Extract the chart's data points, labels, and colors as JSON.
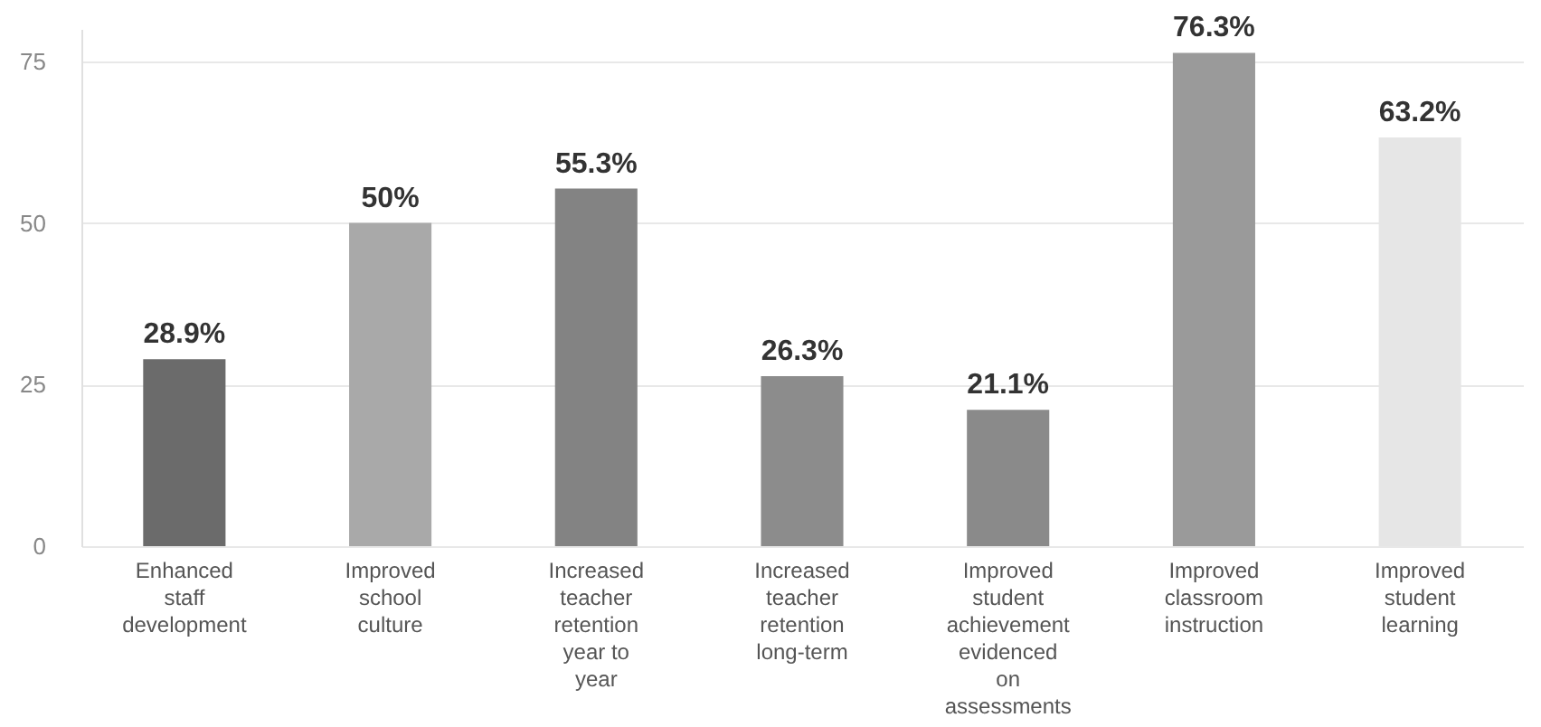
{
  "chart_data": {
    "type": "bar",
    "categories": [
      "Enhanced staff development",
      "Improved school culture",
      "Increased teacher retention year to year",
      "Increased teacher retention long-term",
      "Improved student achievement evidenced on assessments",
      "Improved classroom instruction",
      "Improved student learning"
    ],
    "values": [
      28.9,
      50,
      55.3,
      26.3,
      21.1,
      76.3,
      63.2
    ],
    "value_labels": [
      "28.9%",
      "50%",
      "55.3%",
      "26.3%",
      "21.1%",
      "76.3%",
      "63.2%"
    ],
    "colors": [
      "#6b6b6b",
      "#a9a9a9",
      "#838383",
      "#8c8c8c",
      "#8a8a8a",
      "#9a9a9a",
      "#e6e6e6"
    ],
    "ylim": [
      0,
      80
    ],
    "yticks": [
      0,
      25,
      50,
      75
    ],
    "grid": "y"
  }
}
